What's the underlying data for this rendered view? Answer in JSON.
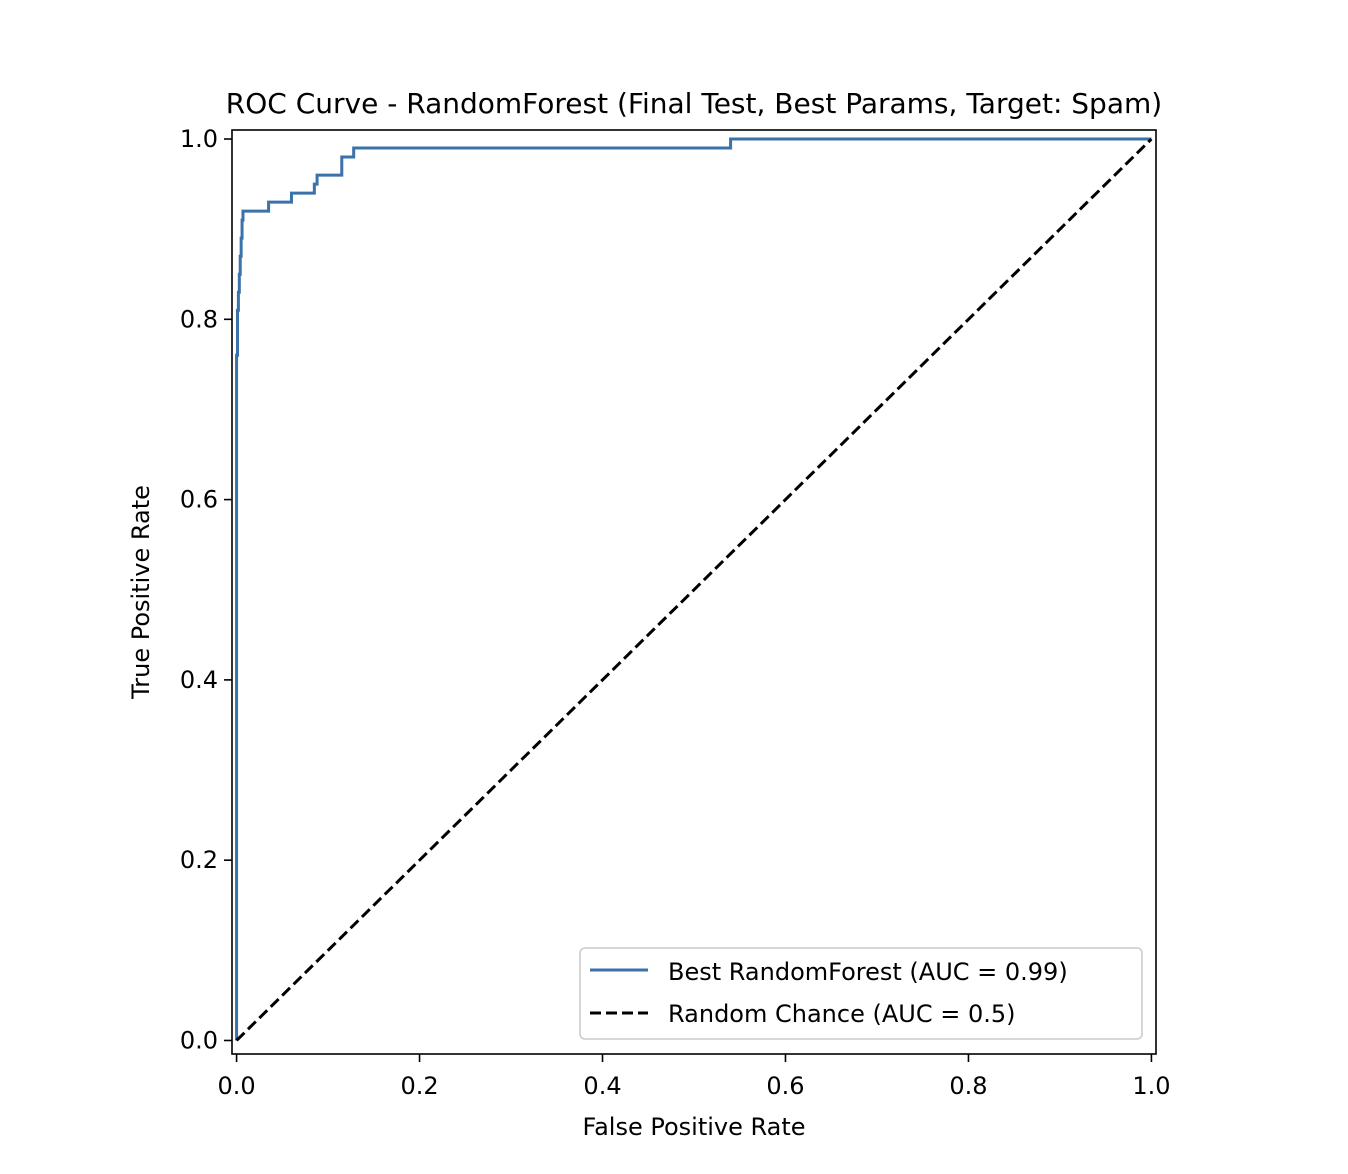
{
  "chart_data": {
    "type": "line",
    "title": "ROC Curve - RandomForest (Final Test, Best Params, Target: Spam)",
    "xlabel": "False Positive Rate",
    "ylabel": "True Positive Rate",
    "xlim": [
      -0.005,
      1.005
    ],
    "ylim": [
      -0.015,
      1.01
    ],
    "xticks": [
      0.0,
      0.2,
      0.4,
      0.6,
      0.8,
      1.0
    ],
    "xtick_labels": [
      "0.0",
      "0.2",
      "0.4",
      "0.6",
      "0.8",
      "1.0"
    ],
    "yticks": [
      0.0,
      0.2,
      0.4,
      0.6,
      0.8,
      1.0
    ],
    "ytick_labels": [
      "0.0",
      "0.2",
      "0.4",
      "0.6",
      "0.8",
      "1.0"
    ],
    "grid": false,
    "legend_position": "bottom-right",
    "series": [
      {
        "name": "Best RandomForest (AUC = 0.99)",
        "color": "#3a72aa",
        "style": "solid",
        "x": [
          0.0,
          0.0,
          0.001,
          0.001,
          0.002,
          0.002,
          0.003,
          0.003,
          0.004,
          0.004,
          0.005,
          0.005,
          0.006,
          0.006,
          0.007,
          0.007,
          0.035,
          0.035,
          0.06,
          0.06,
          0.085,
          0.085,
          0.088,
          0.088,
          0.115,
          0.115,
          0.128,
          0.128,
          0.54,
          0.54,
          1.0
        ],
        "y": [
          0.0,
          0.76,
          0.76,
          0.81,
          0.81,
          0.83,
          0.83,
          0.85,
          0.85,
          0.87,
          0.87,
          0.89,
          0.89,
          0.91,
          0.91,
          0.92,
          0.92,
          0.93,
          0.93,
          0.94,
          0.94,
          0.95,
          0.95,
          0.96,
          0.96,
          0.98,
          0.98,
          0.99,
          0.99,
          1.0,
          1.0
        ]
      },
      {
        "name": "Random Chance (AUC = 0.5)",
        "color": "#000000",
        "style": "dashed",
        "x": [
          0.0,
          1.0
        ],
        "y": [
          0.0,
          1.0
        ]
      }
    ]
  }
}
